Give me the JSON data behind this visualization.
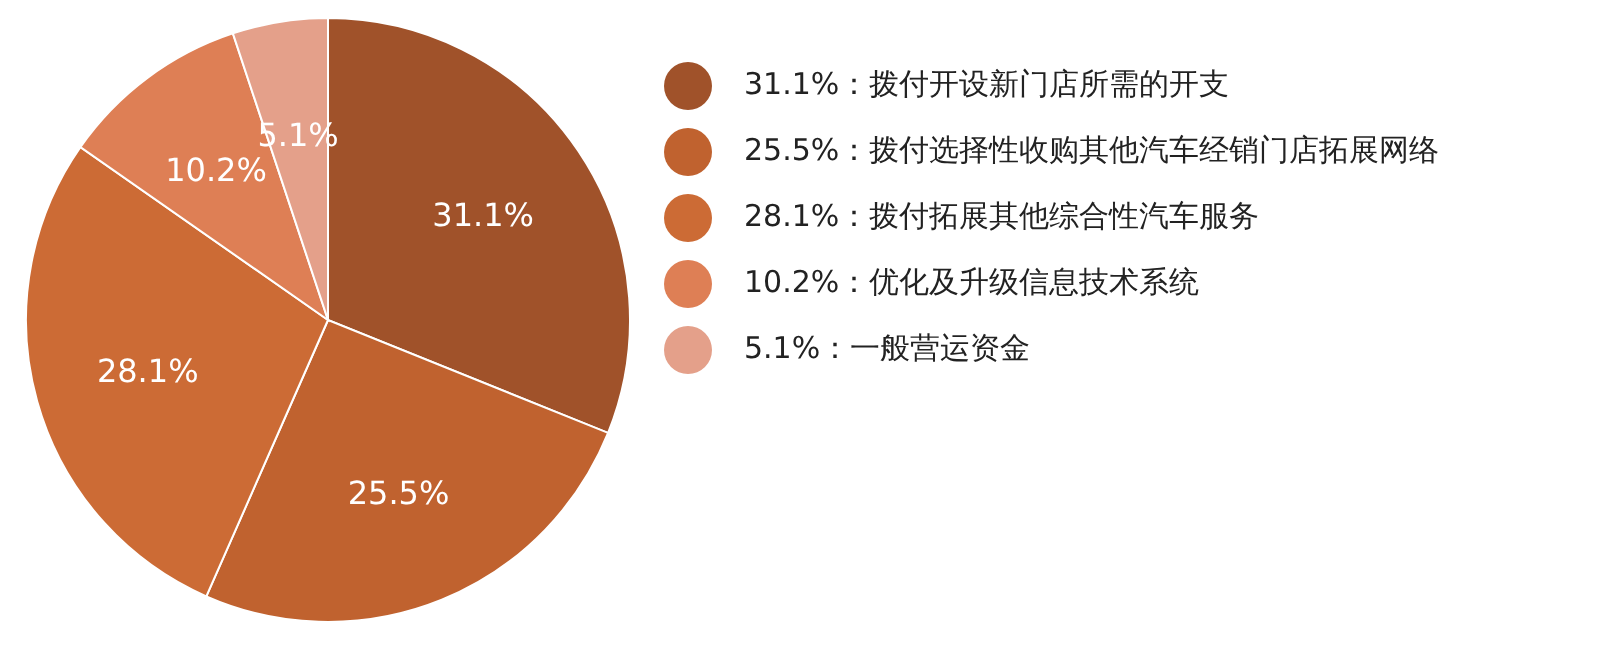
{
  "chart_data": {
    "type": "pie",
    "categories": [
      "31.1%：拨付开设新门店所需的开支",
      "25.5%：拨付选择性收购其他汽车经销门店拓展网络",
      "28.1%：拨付拓展其他综合性汽车服务",
      "10.2%：优化及升级信息技术系统",
      "5.1%：一般营运资金"
    ],
    "values": [
      31.1,
      25.5,
      28.1,
      10.2,
      5.1
    ],
    "colors": [
      "#a0522a",
      "#c0622f",
      "#cc6b35",
      "#de7f55",
      "#e4a08a"
    ],
    "value_labels": [
      "31.1%",
      "25.5%",
      "28.1%",
      "10.2%",
      "5.1%"
    ],
    "legend": "right"
  }
}
